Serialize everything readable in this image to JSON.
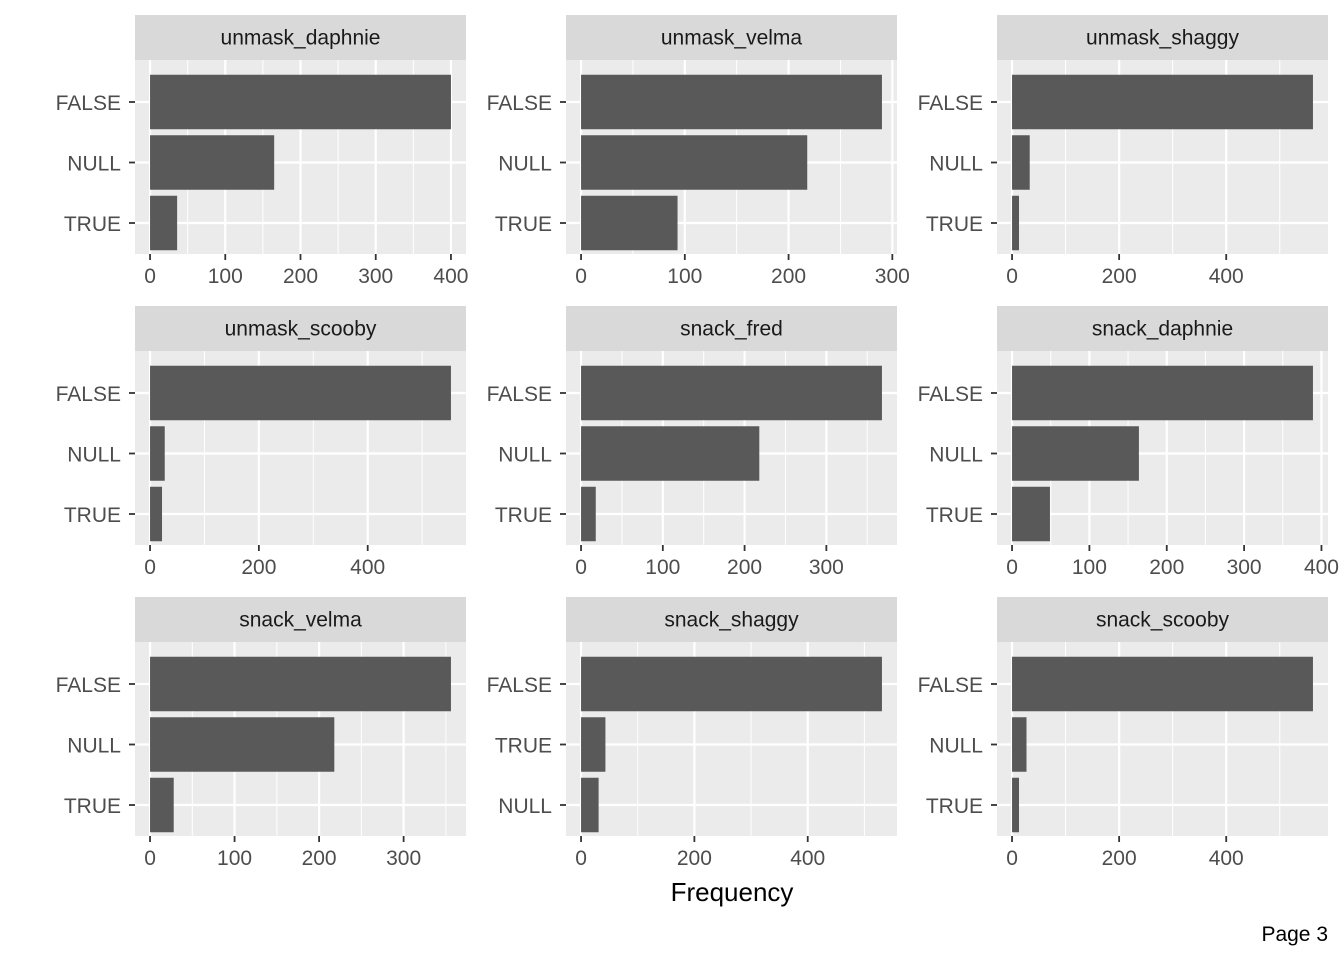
{
  "chart_data": {
    "type": "bar",
    "orientation": "horizontal",
    "xlabel": "Frequency",
    "grid": true,
    "panel_background": "#ebebeb",
    "strip_background": "#d9d9d9",
    "bar_color": "#595959",
    "gridline_color": "#ffffff",
    "panels": [
      {
        "title": "unmask_daphnie",
        "categories": [
          "FALSE",
          "NULL",
          "TRUE"
        ],
        "values": [
          400,
          165,
          36
        ],
        "xlim": [
          -20,
          420
        ],
        "ticks": [
          0,
          100,
          200,
          300,
          400
        ]
      },
      {
        "title": "unmask_velma",
        "categories": [
          "FALSE",
          "NULL",
          "TRUE"
        ],
        "values": [
          290,
          218,
          93
        ],
        "xlim": [
          -14.5,
          304.5
        ],
        "ticks": [
          0,
          100,
          200,
          300
        ]
      },
      {
        "title": "unmask_shaggy",
        "categories": [
          "FALSE",
          "NULL",
          "TRUE"
        ],
        "values": [
          562,
          33,
          13
        ],
        "xlim": [
          -28.1,
          590.1
        ],
        "ticks": [
          0,
          200,
          400
        ]
      },
      {
        "title": "unmask_scooby",
        "categories": [
          "FALSE",
          "NULL",
          "TRUE"
        ],
        "values": [
          553,
          27,
          22
        ],
        "xlim": [
          -27.65,
          580.65
        ],
        "ticks": [
          0,
          200,
          400
        ]
      },
      {
        "title": "snack_fred",
        "categories": [
          "FALSE",
          "NULL",
          "TRUE"
        ],
        "values": [
          368,
          218,
          18
        ],
        "xlim": [
          -18.4,
          386.4
        ],
        "ticks": [
          0,
          100,
          200,
          300
        ]
      },
      {
        "title": "snack_daphnie",
        "categories": [
          "FALSE",
          "NULL",
          "TRUE"
        ],
        "values": [
          389,
          164,
          49
        ],
        "xlim": [
          -19.45,
          408.45
        ],
        "ticks": [
          0,
          100,
          200,
          300,
          400
        ]
      },
      {
        "title": "snack_velma",
        "categories": [
          "FALSE",
          "NULL",
          "TRUE"
        ],
        "values": [
          356,
          218,
          28
        ],
        "xlim": [
          -17.8,
          373.8
        ],
        "ticks": [
          0,
          100,
          200,
          300
        ]
      },
      {
        "title": "snack_shaggy",
        "categories": [
          "FALSE",
          "TRUE",
          "NULL"
        ],
        "values": [
          531,
          43,
          31
        ],
        "xlim": [
          -26.55,
          557.55
        ],
        "ticks": [
          0,
          200,
          400
        ]
      },
      {
        "title": "snack_scooby",
        "categories": [
          "FALSE",
          "NULL",
          "TRUE"
        ],
        "values": [
          562,
          27,
          13
        ],
        "xlim": [
          -28.1,
          590.1
        ],
        "ticks": [
          0,
          200,
          400
        ]
      }
    ]
  },
  "footer": {
    "page_label": "Page 3"
  }
}
